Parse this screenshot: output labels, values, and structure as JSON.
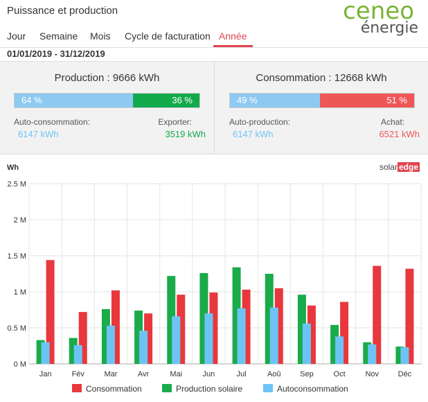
{
  "header": {
    "title": "Puissance et production",
    "logo_top": "ceneo",
    "logo_bottom": "énergie"
  },
  "tabs": [
    {
      "label": "Jour",
      "active": false
    },
    {
      "label": "Semaine",
      "active": false
    },
    {
      "label": "Mois",
      "active": false
    },
    {
      "label": "Cycle de facturation",
      "active": false
    },
    {
      "label": "Année",
      "active": true
    }
  ],
  "date_range": "01/01/2019 - 31/12/2019",
  "production": {
    "title": "Production : 9666 kWh",
    "self_pct": 64,
    "self_pct_label": "64 %",
    "export_pct": 36,
    "export_pct_label": "36 %",
    "self_label": "Auto-consommation:",
    "self_value": "6147 kWh",
    "export_label": "Exporter:",
    "export_value": "3519 kWh"
  },
  "consumption": {
    "title": "Consommation : 12668 kWh",
    "self_pct": 49,
    "self_pct_label": "49 %",
    "purchase_pct": 51,
    "purchase_pct_label": "51 %",
    "self_label": "Auto-production:",
    "self_value": "6147 kWh",
    "purchase_label": "Achat:",
    "purchase_value": "6521 kWh"
  },
  "colors": {
    "consumption": "#e8383d",
    "production": "#1aab4b",
    "self": "#6cc4f5",
    "bar_light": "#8ec9f2",
    "bar_green": "#13aa4c",
    "bar_red": "#ef5656",
    "self_text": "#6cc4f5",
    "export_text": "#13aa4c",
    "purchase_text": "#ef5656"
  },
  "chart_data": {
    "type": "bar",
    "ylabel": "Wh",
    "brand_left": "solar",
    "brand_right": "edge",
    "categories": [
      "Jan",
      "Fév",
      "Mar",
      "Avr",
      "Mai",
      "Jun",
      "Jul",
      "Aoû",
      "Sep",
      "Oct",
      "Nov",
      "Déc"
    ],
    "ylim": [
      0,
      2500000
    ],
    "yticks": [
      0,
      500000,
      1000000,
      1500000,
      2000000,
      2500000
    ],
    "ytick_labels": [
      "0 M",
      "0.5 M",
      "1 M",
      "1.5 M",
      "2 M",
      "2.5 M"
    ],
    "series": [
      {
        "name": "Production solaire",
        "values": [
          330000,
          360000,
          760000,
          740000,
          1220000,
          1260000,
          1340000,
          1250000,
          960000,
          540000,
          300000,
          240000
        ]
      },
      {
        "name": "Consommation",
        "values": [
          1440000,
          720000,
          1020000,
          700000,
          960000,
          990000,
          1030000,
          1050000,
          810000,
          860000,
          1360000,
          1320000
        ]
      },
      {
        "name": "Autoconsommation",
        "values": [
          300000,
          260000,
          530000,
          460000,
          660000,
          700000,
          770000,
          780000,
          560000,
          380000,
          270000,
          230000
        ]
      }
    ],
    "legend": [
      "Consommation",
      "Production solaire",
      "Autoconsommation"
    ],
    "legend_position": "bottom",
    "grid": true
  }
}
